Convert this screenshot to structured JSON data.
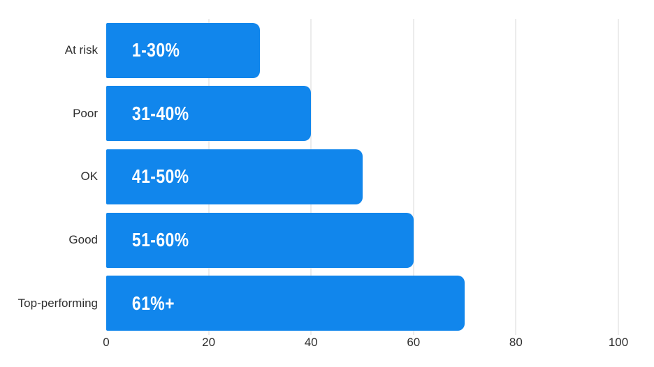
{
  "chart_data": {
    "type": "bar",
    "orientation": "horizontal",
    "title": "",
    "xlabel": "",
    "ylabel": "",
    "categories": [
      "At risk",
      "Poor",
      "OK",
      "Good",
      "Top-performing"
    ],
    "values": [
      30,
      40,
      50,
      60,
      70
    ],
    "bar_labels": [
      "1-30%",
      "31-40%",
      "41-50%",
      "51-60%",
      "61%+"
    ],
    "xlim": [
      0,
      100
    ],
    "x_ticks": [
      "0",
      "20",
      "40",
      "60",
      "80",
      "100"
    ],
    "grid": true,
    "legend": false,
    "colors": {
      "bar": "#1186EC",
      "bar_label_text": "#ffffff",
      "gridline": "#ececec",
      "axis_text": "#2f2f2f",
      "background": "#ffffff"
    }
  }
}
